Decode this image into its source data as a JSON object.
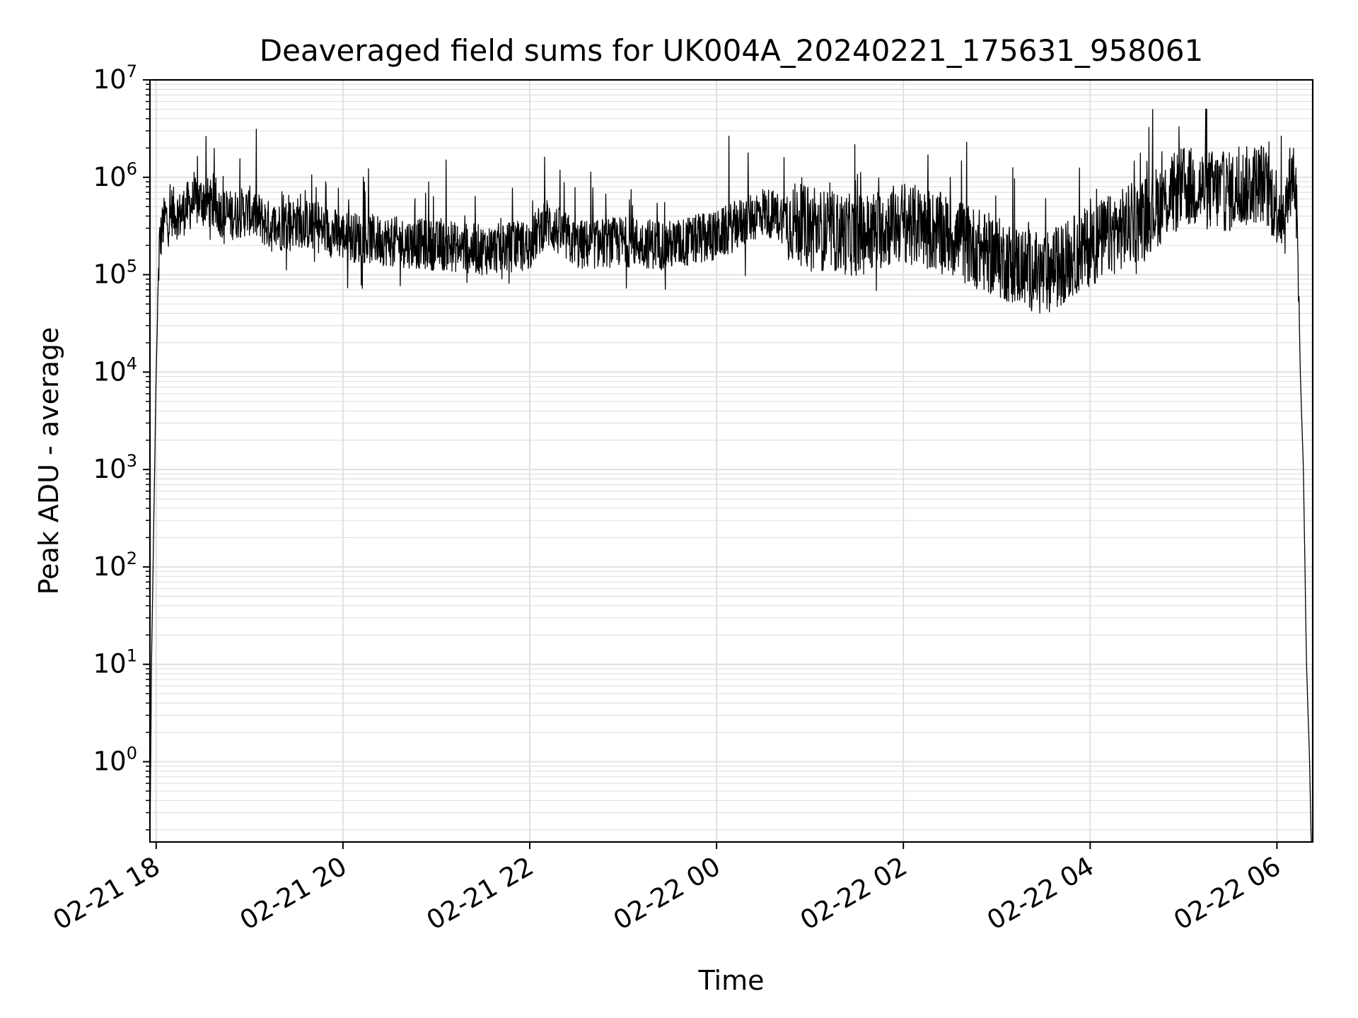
{
  "chart_data": {
    "type": "line",
    "title": "Deaveraged field sums for UK004A_20240221_175631_958061",
    "xlabel": "Time",
    "ylabel": "Peak ADU - average",
    "yscale": "log",
    "ylim": [
      0.15,
      10000000
    ],
    "xlim": [
      "02-21 17:56",
      "02-22 06:23"
    ],
    "grid": true,
    "line_color": "#000000",
    "grid_color": "#e0e0e0",
    "x_ticks": [
      {
        "t": "02-21 18:00",
        "label": "02-21 18"
      },
      {
        "t": "02-21 20:00",
        "label": "02-21 20"
      },
      {
        "t": "02-21 22:00",
        "label": "02-21 22"
      },
      {
        "t": "02-22 00:00",
        "label": "02-22 00"
      },
      {
        "t": "02-22 02:00",
        "label": "02-22 02"
      },
      {
        "t": "02-22 04:00",
        "label": "02-22 04"
      },
      {
        "t": "02-22 06:00",
        "label": "02-22 06"
      }
    ],
    "y_ticks": [
      {
        "value": 1,
        "base": "10",
        "exp": "0"
      },
      {
        "value": 10,
        "base": "10",
        "exp": "1"
      },
      {
        "value": 100,
        "base": "10",
        "exp": "2"
      },
      {
        "value": 1000,
        "base": "10",
        "exp": "3"
      },
      {
        "value": 10000,
        "base": "10",
        "exp": "4"
      },
      {
        "value": 100000,
        "base": "10",
        "exp": "5"
      },
      {
        "value": 1000000,
        "base": "10",
        "exp": "6"
      },
      {
        "value": 10000000,
        "base": "10",
        "exp": "7"
      }
    ],
    "series": [
      {
        "x": [
          "02-21 17:56",
          "02-21 17:57",
          "02-21 17:58",
          "02-21 17:59",
          "02-21 18:00",
          "02-21 18:02",
          "02-21 18:04",
          "02-21 18:06",
          "02-21 18:08",
          "02-21 18:10",
          "02-21 18:15",
          "02-21 18:20",
          "02-21 18:30",
          "02-21 18:45",
          "02-21 19:00",
          "02-21 19:15",
          "02-21 19:30",
          "02-21 19:45",
          "02-21 20:00",
          "02-21 20:30",
          "02-21 21:00",
          "02-21 21:30",
          "02-21 22:00",
          "02-21 22:10",
          "02-21 22:30",
          "02-21 23:00",
          "02-21 23:30",
          "02-22 00:00",
          "02-22 00:30",
          "02-22 01:00",
          "02-22 01:30",
          "02-22 02:00",
          "02-22 02:30",
          "02-22 03:00",
          "02-22 03:30",
          "02-22 04:00",
          "02-22 04:30",
          "02-22 05:00",
          "02-22 05:30",
          "02-22 05:50",
          "02-22 06:05",
          "02-22 06:10",
          "02-22 06:13",
          "02-22 06:15",
          "02-22 06:17",
          "02-22 06:19",
          "02-22 06:21",
          "02-22 06:22"
        ],
        "y": [
          0.15,
          10,
          100,
          1000,
          10000,
          200000,
          300000,
          400000,
          350000,
          450000,
          400000,
          500000,
          600000,
          400000,
          450000,
          300000,
          350000,
          300000,
          250000,
          220000,
          200000,
          180000,
          200000,
          350000,
          200000,
          220000,
          200000,
          250000,
          450000,
          300000,
          250000,
          350000,
          250000,
          150000,
          100000,
          200000,
          350000,
          800000,
          700000,
          900000,
          400000,
          1200000,
          600000,
          10000,
          1000,
          10,
          1,
          0.15
        ]
      }
    ]
  }
}
